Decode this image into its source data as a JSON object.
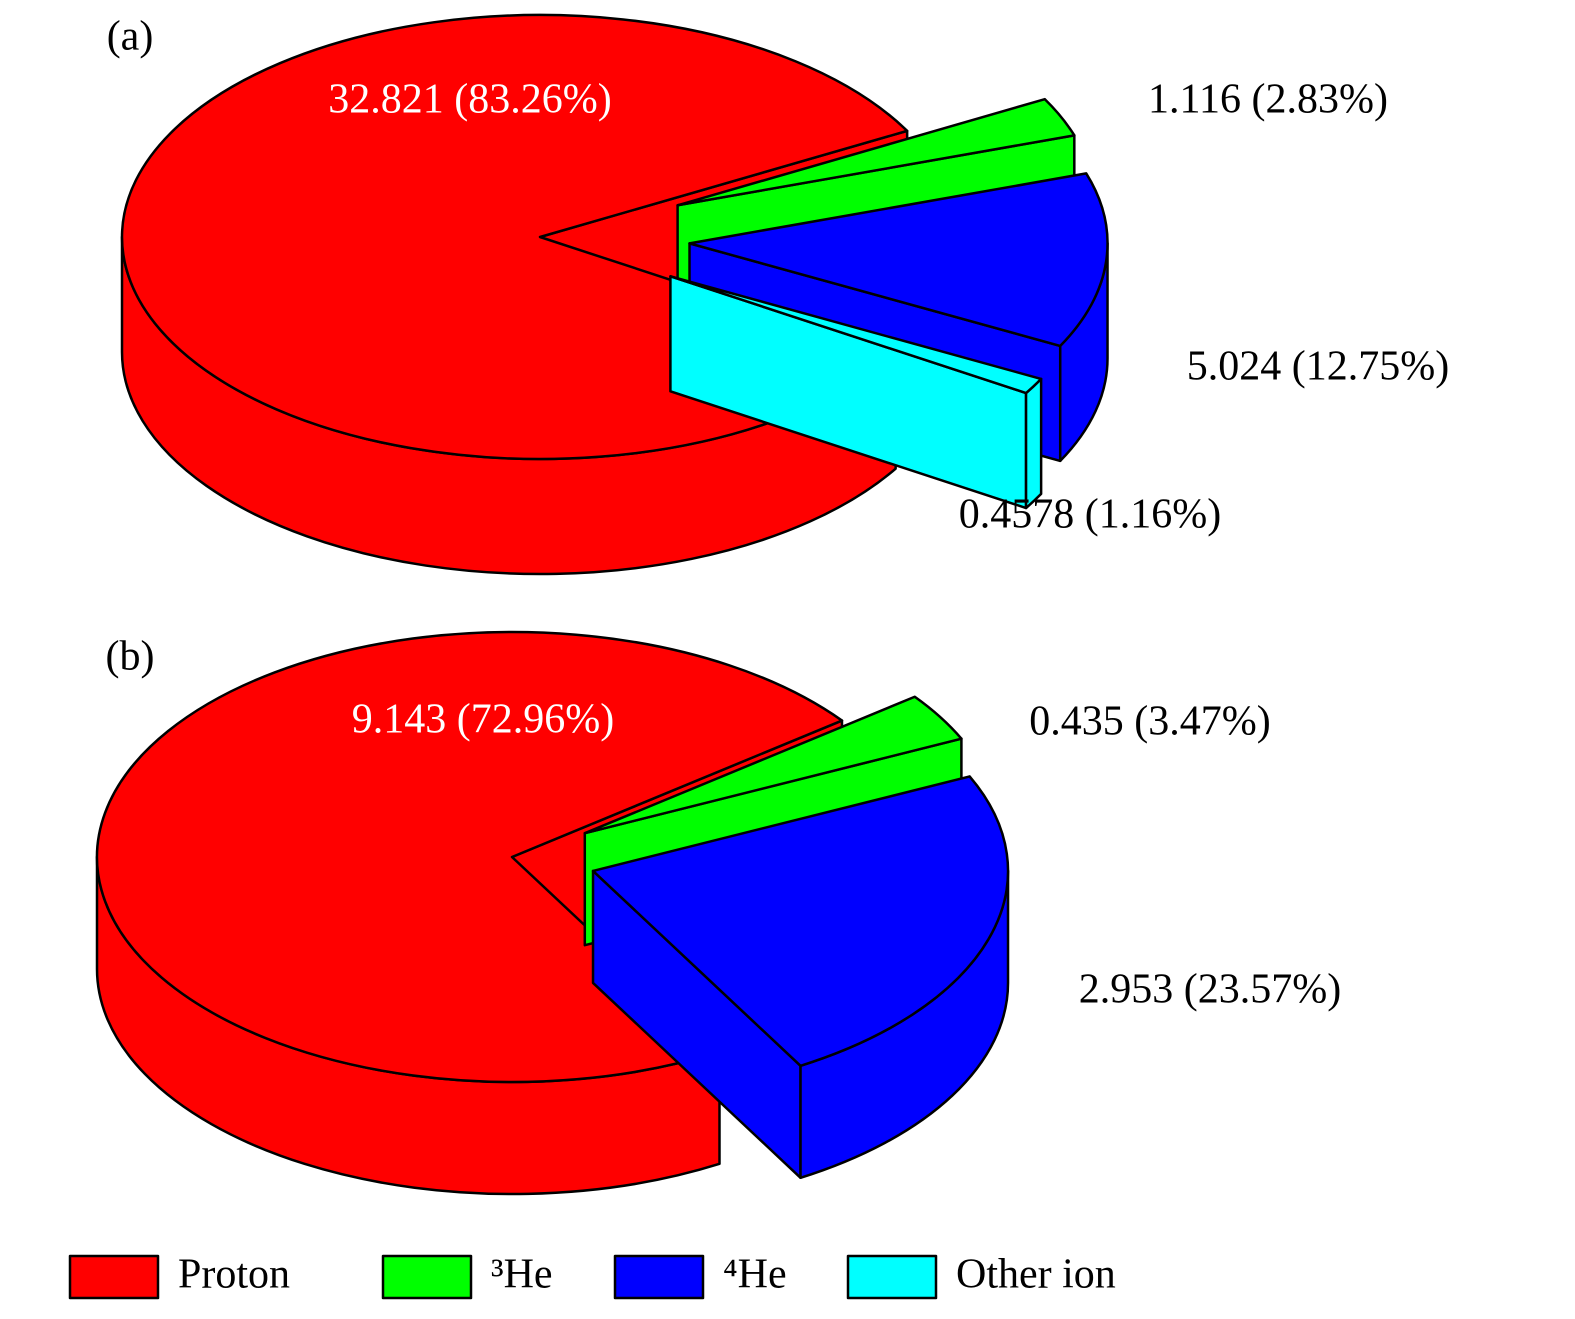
{
  "chart_data": [
    {
      "type": "pie",
      "title": "(a)",
      "values": [
        32.821,
        1.116,
        5.024,
        0.4578
      ],
      "value_labels": [
        "32.821 (83.26%)",
        "1.116 (2.83%)",
        "5.024 (12.75%)",
        "0.4578 (1.16%)"
      ],
      "colors": [
        "#ff0000",
        "#00ff00",
        "#0000ff",
        "#00ffff"
      ]
    },
    {
      "type": "pie",
      "title": "(b)",
      "values": [
        9.143,
        0.435,
        2.953
      ],
      "value_labels": [
        "9.143 (72.96%)",
        "0.435 (3.47%)",
        "2.953 (23.57%)"
      ],
      "colors": [
        "#ff0000",
        "#00ff00",
        "#0000ff"
      ]
    }
  ],
  "legend": [
    {
      "name": "Proton",
      "color": "#ff0000"
    },
    {
      "name": "³He",
      "color": "#00ff00"
    },
    {
      "name": "⁴He",
      "color": "#0000ff"
    },
    {
      "name": "Other ion",
      "color": "#00ffff"
    }
  ]
}
